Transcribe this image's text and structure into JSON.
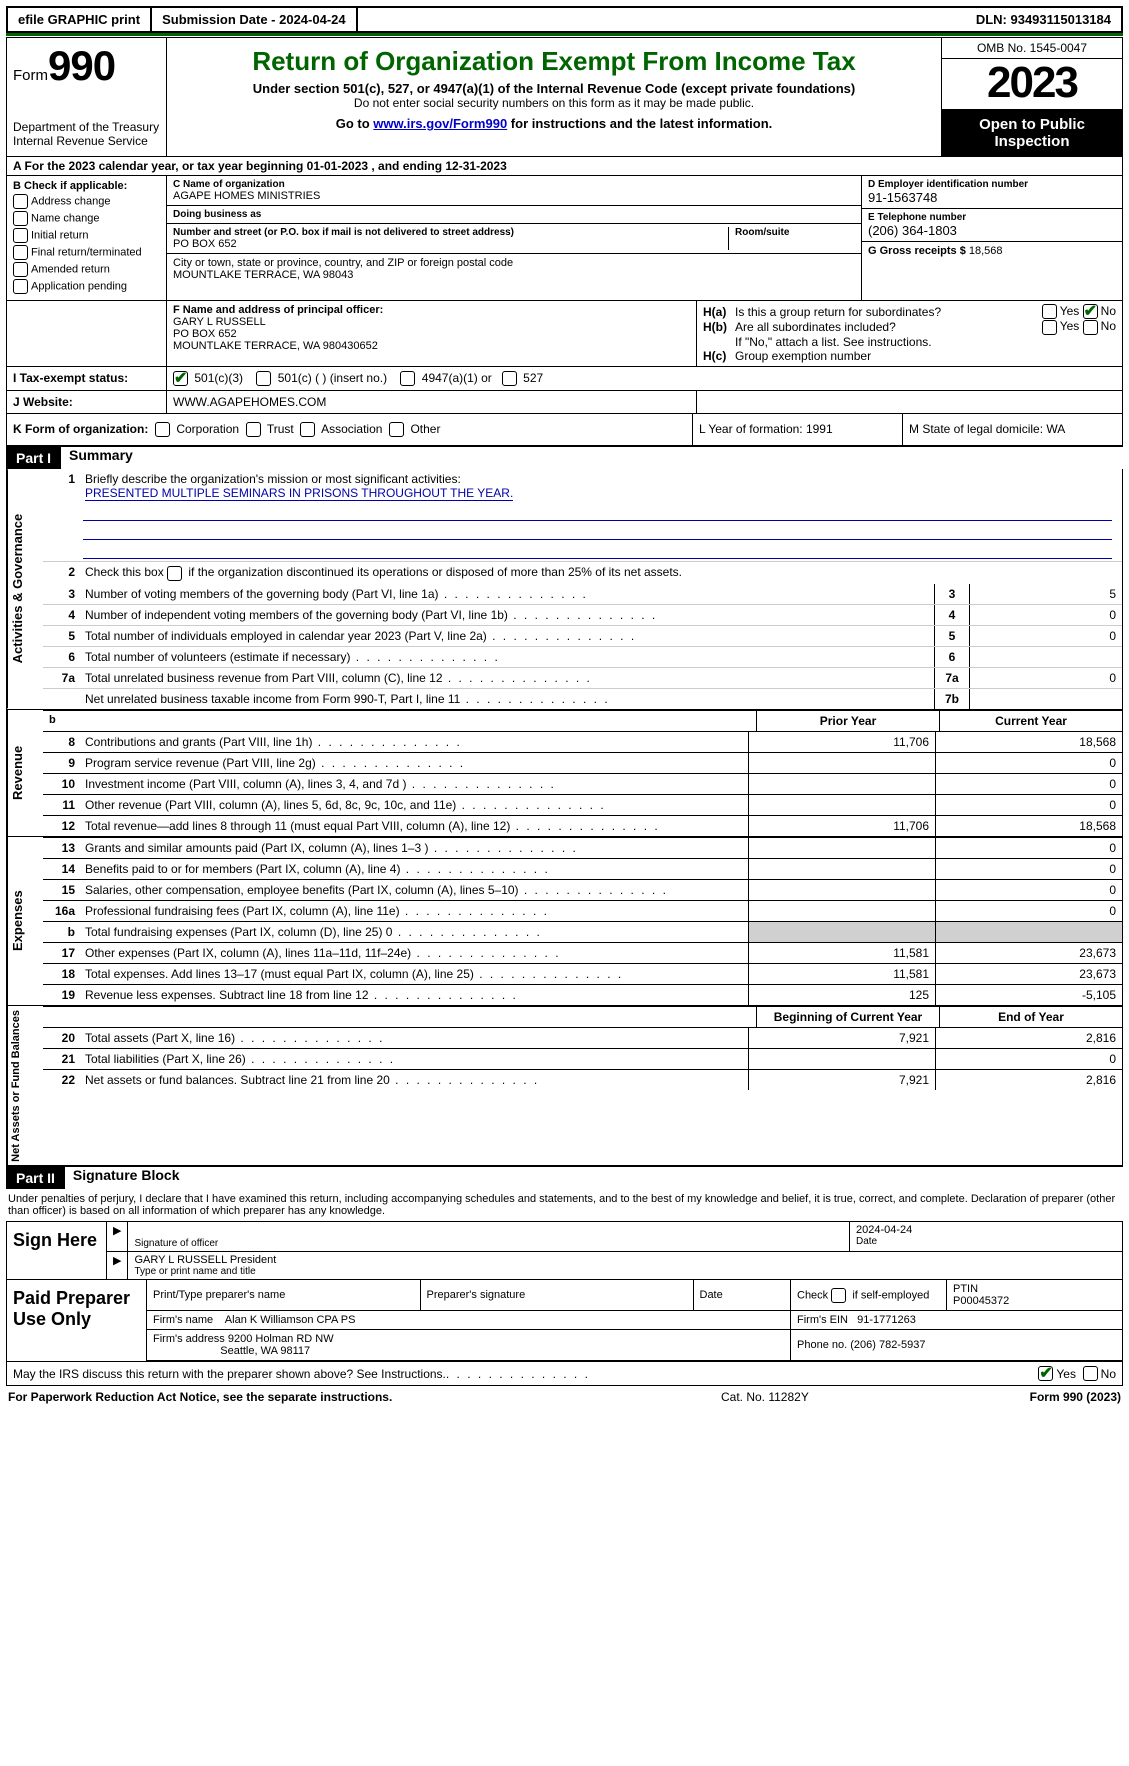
{
  "colors": {
    "accent": "#006400",
    "link": "#0000cc",
    "shade": "#d0d0d0"
  },
  "topbar": {
    "efile": "efile GRAPHIC print",
    "submission_label": "Submission Date - ",
    "submission_date": "2024-04-24",
    "dln_label": "DLN: ",
    "dln": "93493115013184"
  },
  "header": {
    "form_prefix": "Form",
    "form_number": "990",
    "dept": "Department of the Treasury",
    "irs": "Internal Revenue Service",
    "title": "Return of Organization Exempt From Income Tax",
    "sub1": "Under section 501(c), 527, or 4947(a)(1) of the Internal Revenue Code (except private foundations)",
    "sub2": "Do not enter social security numbers on this form as it may be made public.",
    "go_prefix": "Go to ",
    "go_link": "www.irs.gov/Form990",
    "go_suffix": " for instructions and the latest information.",
    "omb": "OMB No. 1545-0047",
    "year": "2023",
    "open": "Open to Public Inspection"
  },
  "rowA": "A For the 2023 calendar year, or tax year beginning 01-01-2023   , and ending 12-31-2023",
  "boxB": {
    "title": "B Check if applicable:",
    "items": [
      "Address change",
      "Name change",
      "Initial return",
      "Final return/terminated",
      "Amended return",
      "Application pending"
    ]
  },
  "boxC": {
    "name_label": "C Name of organization",
    "name": "AGAPE HOMES MINISTRIES",
    "dba_label": "Doing business as",
    "dba": "",
    "street_label": "Number and street (or P.O. box if mail is not delivered to street address)",
    "room_label": "Room/suite",
    "street": "PO BOX 652",
    "city_label": "City or town, state or province, country, and ZIP or foreign postal code",
    "city": "MOUNTLAKE TERRACE, WA  98043"
  },
  "boxD": {
    "label": "D Employer identification number",
    "value": "91-1563748"
  },
  "boxE": {
    "label": "E Telephone number",
    "value": "(206) 364-1803"
  },
  "boxG": {
    "label": "G Gross receipts $ ",
    "value": "18,568"
  },
  "boxF": {
    "label": "F  Name and address of principal officer:",
    "line1": "GARY L RUSSELL",
    "line2": "PO BOX 652",
    "line3": "MOUNTLAKE TERRACE, WA  980430652"
  },
  "boxH": {
    "a_label": "H(a)",
    "a_text": "Is this a group return for subordinates?",
    "b_label": "H(b)",
    "b_text": "Are all subordinates included?",
    "note": "If \"No,\" attach a list. See instructions.",
    "c_label": "H(c)",
    "c_text": "Group exemption number",
    "yes": "Yes",
    "no": "No",
    "a_answer": "No"
  },
  "rowI": {
    "label": "I   Tax-exempt status:",
    "opts": [
      "501(c)(3)",
      "501(c) (   ) (insert no.)",
      "4947(a)(1) or",
      "527"
    ],
    "checked": 0
  },
  "rowJ": {
    "label": "J   Website:",
    "value": "WWW.AGAPEHOMES.COM"
  },
  "rowK": {
    "label": "K Form of organization:",
    "opts": [
      "Corporation",
      "Trust",
      "Association",
      "Other"
    ],
    "L": "L Year of formation: 1991",
    "M": "M State of legal domicile: WA"
  },
  "partI": {
    "tag": "Part I",
    "title": "Summary",
    "sections": {
      "gov": {
        "label": "Activities & Governance",
        "l1_pre": "Briefly describe the organization's mission or most significant activities:",
        "l1_num": "1",
        "mission": "PRESENTED MULTIPLE SEMINARS IN PRISONS THROUGHOUT THE YEAR.",
        "l2_num": "2",
        "l2": "Check this box       if the organization discontinued its operations or disposed of more than 25% of its net assets.",
        "rows": [
          {
            "n": "3",
            "t": "Number of voting members of the governing body (Part VI, line 1a)",
            "box": "3",
            "v": "5"
          },
          {
            "n": "4",
            "t": "Number of independent voting members of the governing body (Part VI, line 1b)",
            "box": "4",
            "v": "0"
          },
          {
            "n": "5",
            "t": "Total number of individuals employed in calendar year 2023 (Part V, line 2a)",
            "box": "5",
            "v": "0"
          },
          {
            "n": "6",
            "t": "Total number of volunteers (estimate if necessary)",
            "box": "6",
            "v": ""
          },
          {
            "n": "7a",
            "t": "Total unrelated business revenue from Part VIII, column (C), line 12",
            "box": "7a",
            "v": "0"
          },
          {
            "n": "",
            "t": "Net unrelated business taxable income from Form 990-T, Part I, line 11",
            "box": "7b",
            "v": ""
          }
        ]
      },
      "rev": {
        "label": "Revenue",
        "hdr_prior": "Prior Year",
        "hdr_curr": "Current Year",
        "rows": [
          {
            "n": "8",
            "t": "Contributions and grants (Part VIII, line 1h)",
            "p": "11,706",
            "c": "18,568"
          },
          {
            "n": "9",
            "t": "Program service revenue (Part VIII, line 2g)",
            "p": "",
            "c": "0"
          },
          {
            "n": "10",
            "t": "Investment income (Part VIII, column (A), lines 3, 4, and 7d )",
            "p": "",
            "c": "0"
          },
          {
            "n": "11",
            "t": "Other revenue (Part VIII, column (A), lines 5, 6d, 8c, 9c, 10c, and 11e)",
            "p": "",
            "c": "0"
          },
          {
            "n": "12",
            "t": "Total revenue—add lines 8 through 11 (must equal Part VIII, column (A), line 12)",
            "p": "11,706",
            "c": "18,568"
          }
        ]
      },
      "exp": {
        "label": "Expenses",
        "rows": [
          {
            "n": "13",
            "t": "Grants and similar amounts paid (Part IX, column (A), lines 1–3 )",
            "p": "",
            "c": "0"
          },
          {
            "n": "14",
            "t": "Benefits paid to or for members (Part IX, column (A), line 4)",
            "p": "",
            "c": "0"
          },
          {
            "n": "15",
            "t": "Salaries, other compensation, employee benefits (Part IX, column (A), lines 5–10)",
            "p": "",
            "c": "0"
          },
          {
            "n": "16a",
            "t": "Professional fundraising fees (Part IX, column (A), line 11e)",
            "p": "",
            "c": "0"
          },
          {
            "n": "b",
            "t": "Total fundraising expenses (Part IX, column (D), line 25) 0",
            "p": "shade",
            "c": "shade"
          },
          {
            "n": "17",
            "t": "Other expenses (Part IX, column (A), lines 11a–11d, 11f–24e)",
            "p": "11,581",
            "c": "23,673"
          },
          {
            "n": "18",
            "t": "Total expenses. Add lines 13–17 (must equal Part IX, column (A), line 25)",
            "p": "11,581",
            "c": "23,673"
          },
          {
            "n": "19",
            "t": "Revenue less expenses. Subtract line 18 from line 12",
            "p": "125",
            "c": "-5,105"
          }
        ]
      },
      "net": {
        "label": "Net Assets or Fund Balances",
        "hdr_prior": "Beginning of Current Year",
        "hdr_curr": "End of Year",
        "rows": [
          {
            "n": "20",
            "t": "Total assets (Part X, line 16)",
            "p": "7,921",
            "c": "2,816"
          },
          {
            "n": "21",
            "t": "Total liabilities (Part X, line 26)",
            "p": "",
            "c": "0"
          },
          {
            "n": "22",
            "t": "Net assets or fund balances. Subtract line 21 from line 20",
            "p": "7,921",
            "c": "2,816"
          }
        ]
      }
    }
  },
  "partII": {
    "tag": "Part II",
    "title": "Signature Block",
    "decl": "Under penalties of perjury, I declare that I have examined this return, including accompanying schedules and statements, and to the best of my knowledge and belief, it is true, correct, and complete. Declaration of preparer (other than officer) is based on all information of which preparer has any knowledge."
  },
  "sign": {
    "side": "Sign Here",
    "sig_label": "Signature of officer",
    "date_label": "Date",
    "date": "2024-04-24",
    "name": "GARY L RUSSELL President",
    "name_label": "Type or print name and title"
  },
  "prep": {
    "side": "Paid Preparer Use Only",
    "h1": "Print/Type preparer's name",
    "h2": "Preparer's signature",
    "h3": "Date",
    "h4_pre": "Check",
    "h4_post": "if self-employed",
    "h5": "PTIN",
    "ptin": "P00045372",
    "firm_name_label": "Firm's name",
    "firm_name": "Alan K Williamson CPA PS",
    "firm_ein_label": "Firm's EIN",
    "firm_ein": "91-1771263",
    "firm_addr_label": "Firm's address",
    "firm_addr1": "9200 Holman RD NW",
    "firm_addr2": "Seattle, WA  98117",
    "phone_label": "Phone no.",
    "phone": "(206) 782-5937"
  },
  "discuss": {
    "text": "May the IRS discuss this return with the preparer shown above? See Instructions.",
    "yes": "Yes",
    "no": "No",
    "answer": "Yes"
  },
  "footer": {
    "left": "For Paperwork Reduction Act Notice, see the separate instructions.",
    "mid": "Cat. No. 11282Y",
    "right": "Form 990 (2023)"
  }
}
